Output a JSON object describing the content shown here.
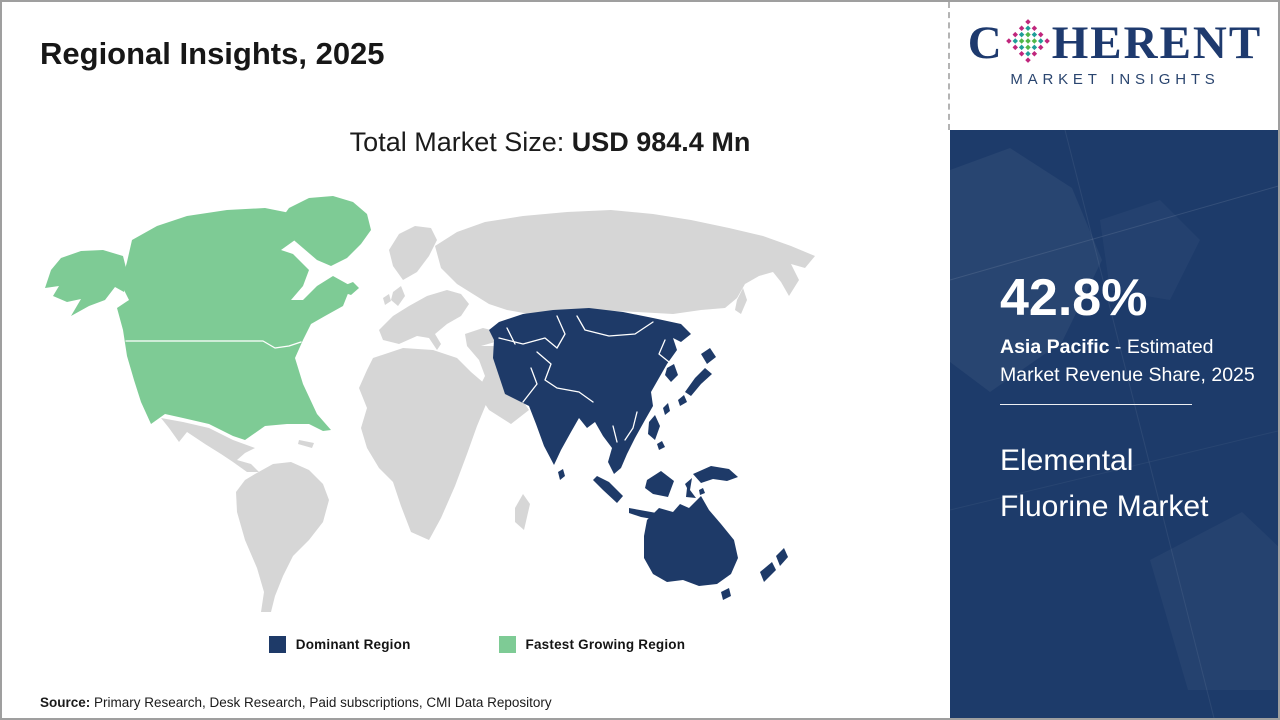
{
  "header": {
    "title": "Regional Insights, 2025"
  },
  "logo": {
    "brand_c": "C",
    "brand_rest": "HERENT",
    "tagline": "MARKET INSIGHTS",
    "brand_color": "#1e3a6e",
    "dot_colors": {
      "outer": "#c0267c",
      "mid": "#1f9e98",
      "inner": "#51b748"
    }
  },
  "subtitle": {
    "label": "Total Market Size: ",
    "value": "USD 984.4 Mn"
  },
  "sidebar": {
    "bg_color": "#1d3b6a",
    "share_value": "42.8%",
    "share_region": "Asia Pacific",
    "share_rest": " - Estimated Market Revenue Share, 2025",
    "market_name": "Elemental Fluorine Market"
  },
  "footer": {
    "label": "Source:",
    "text": " Primary Research, Desk Research, Paid subscriptions, CMI Data Repository"
  },
  "chart_data": {
    "type": "choropleth",
    "title": "Regional Insights, 2025",
    "market": "Elemental Fluorine Market",
    "year": 2025,
    "total_market_size": "USD 984.4 Mn",
    "legend": [
      {
        "label": "Dominant Region",
        "color": "#1e3a68"
      },
      {
        "label": "Fastest Growing Region",
        "color": "#7ecb95"
      }
    ],
    "other_land_color": "#d6d6d6",
    "legend_position": "bottom-center",
    "regions": [
      {
        "name": "Asia Pacific",
        "classification": "Dominant Region",
        "share_2025_pct": 42.8
      },
      {
        "name": "North America",
        "classification": "Fastest Growing Region",
        "share_2025_pct": null
      },
      {
        "name": "Rest of World",
        "classification": "Other",
        "share_2025_pct": null
      }
    ],
    "highlight": {
      "value": "42.8%",
      "description": "Asia Pacific - Estimated Market Revenue Share, 2025"
    }
  }
}
